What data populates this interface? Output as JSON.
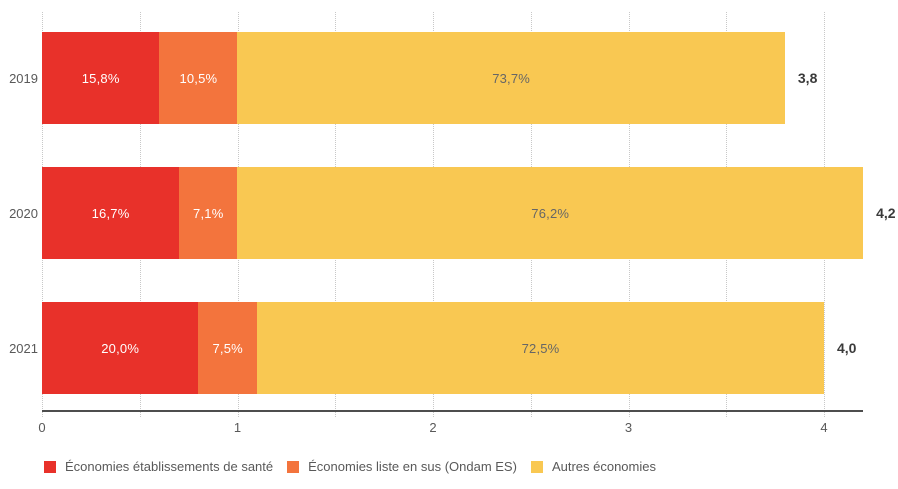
{
  "chart_data": {
    "type": "bar",
    "orientation": "horizontal",
    "stacked": true,
    "categories": [
      "2019",
      "2020",
      "2021"
    ],
    "series": [
      {
        "name": "Économies établissements de santé",
        "color": "#e8312a",
        "label_color": "#ffffff",
        "values_pct": [
          15.8,
          16.7,
          20.0
        ],
        "segment_labels": [
          "15,8%",
          "16,7%",
          "20,0%"
        ]
      },
      {
        "name": "Économies liste en sus (Ondam ES)",
        "color": "#f3743d",
        "label_color": "#ffffff",
        "values_pct": [
          10.5,
          7.1,
          7.5
        ],
        "segment_labels": [
          "10,5%",
          "7,1%",
          "7,5%"
        ]
      },
      {
        "name": "Autres économies",
        "color": "#f9c852",
        "label_color": "#666666",
        "values_pct": [
          73.7,
          76.2,
          72.5
        ],
        "segment_labels": [
          "73,7%",
          "76,2%",
          "72,5%"
        ]
      }
    ],
    "totals": [
      3.8,
      4.2,
      4.0
    ],
    "total_labels": [
      "3,8",
      "4,2",
      "4,0"
    ],
    "x_axis": {
      "min": 0,
      "max": 4,
      "grid_step": 0.5,
      "tick_labels": [
        "0",
        "1",
        "2",
        "3",
        "4"
      ],
      "grid": true
    },
    "legend_position": "bottom-left",
    "colors": {
      "grid": "#c8c8c8",
      "axis": "#4d4d4d",
      "tick_text": "#595959",
      "category_text": "#595959",
      "total_text": "#3a3a3a",
      "legend_text": "#595959"
    }
  }
}
